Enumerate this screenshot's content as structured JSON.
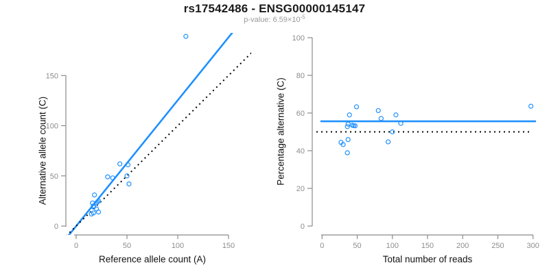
{
  "header": {
    "title": "rs17542486 - ENSG00000145147",
    "pvalue_label": "p-value: 6.59×10",
    "pvalue_exponent": "-5"
  },
  "colors": {
    "accent_blue": "#1E90FF",
    "dotted_black": "#000000",
    "axis_gray": "#8a8a8a",
    "tick_label_gray": "#8c8c8c",
    "axis_title_black": "#111111",
    "subtitle_gray": "#9a9a9a"
  },
  "chart_data": [
    {
      "type": "scatter",
      "title": "",
      "xlabel": "Reference allele count (A)",
      "ylabel": "Alternative allele count (C)",
      "xlim": [
        0,
        150
      ],
      "ylim": [
        0,
        190
      ],
      "xticks": [
        0,
        50,
        100,
        150
      ],
      "yticks": [
        0,
        50,
        100,
        150
      ],
      "grid": false,
      "legend": "none",
      "marker": "open-circle",
      "points": [
        [
          18,
          31
        ],
        [
          16,
          23
        ],
        [
          31,
          49
        ],
        [
          36,
          48
        ],
        [
          43,
          62
        ],
        [
          51,
          61
        ],
        [
          108,
          189
        ],
        [
          17,
          19
        ],
        [
          17,
          20
        ],
        [
          20,
          23
        ],
        [
          21,
          24
        ],
        [
          22,
          25
        ],
        [
          50,
          50
        ],
        [
          20,
          17
        ],
        [
          15,
          12
        ],
        [
          17,
          13
        ],
        [
          22,
          14
        ],
        [
          52,
          42
        ]
      ],
      "lines": [
        {
          "label": "allelic-ratio-fit",
          "type": "abline",
          "intercept": 0,
          "slope": 1.2535,
          "style": "solid",
          "color": "#1E90FF"
        },
        {
          "label": "identity-line",
          "type": "abline",
          "intercept": 0,
          "slope": 1,
          "style": "dotted",
          "color": "#000000"
        }
      ]
    },
    {
      "type": "scatter",
      "title": "",
      "xlabel": "Total number of reads",
      "ylabel": "Percentage alternative (C)",
      "xlim": [
        0,
        300
      ],
      "ylim": [
        0,
        100
      ],
      "xticks": [
        0,
        50,
        100,
        150,
        200,
        250,
        300
      ],
      "yticks": [
        0,
        20,
        40,
        60,
        80,
        100
      ],
      "grid": false,
      "legend": "none",
      "marker": "open-circle",
      "points": [
        [
          49,
          63.3
        ],
        [
          39,
          59.0
        ],
        [
          80,
          61.3
        ],
        [
          84,
          57.1
        ],
        [
          105,
          59.0
        ],
        [
          112,
          54.5
        ],
        [
          297,
          63.6
        ],
        [
          36,
          52.8
        ],
        [
          37,
          54.1
        ],
        [
          43,
          53.5
        ],
        [
          45,
          53.3
        ],
        [
          47,
          53.2
        ],
        [
          100,
          50.0
        ],
        [
          37,
          45.9
        ],
        [
          27,
          44.4
        ],
        [
          30,
          43.3
        ],
        [
          36,
          38.9
        ],
        [
          94,
          44.7
        ]
      ],
      "lines": [
        {
          "label": "mean-alternative-percentage",
          "type": "hline",
          "y": 55.6,
          "style": "solid",
          "color": "#1E90FF"
        },
        {
          "label": "balanced-50-percent",
          "type": "hline",
          "y": 50,
          "style": "dotted",
          "color": "#000000"
        }
      ]
    }
  ]
}
